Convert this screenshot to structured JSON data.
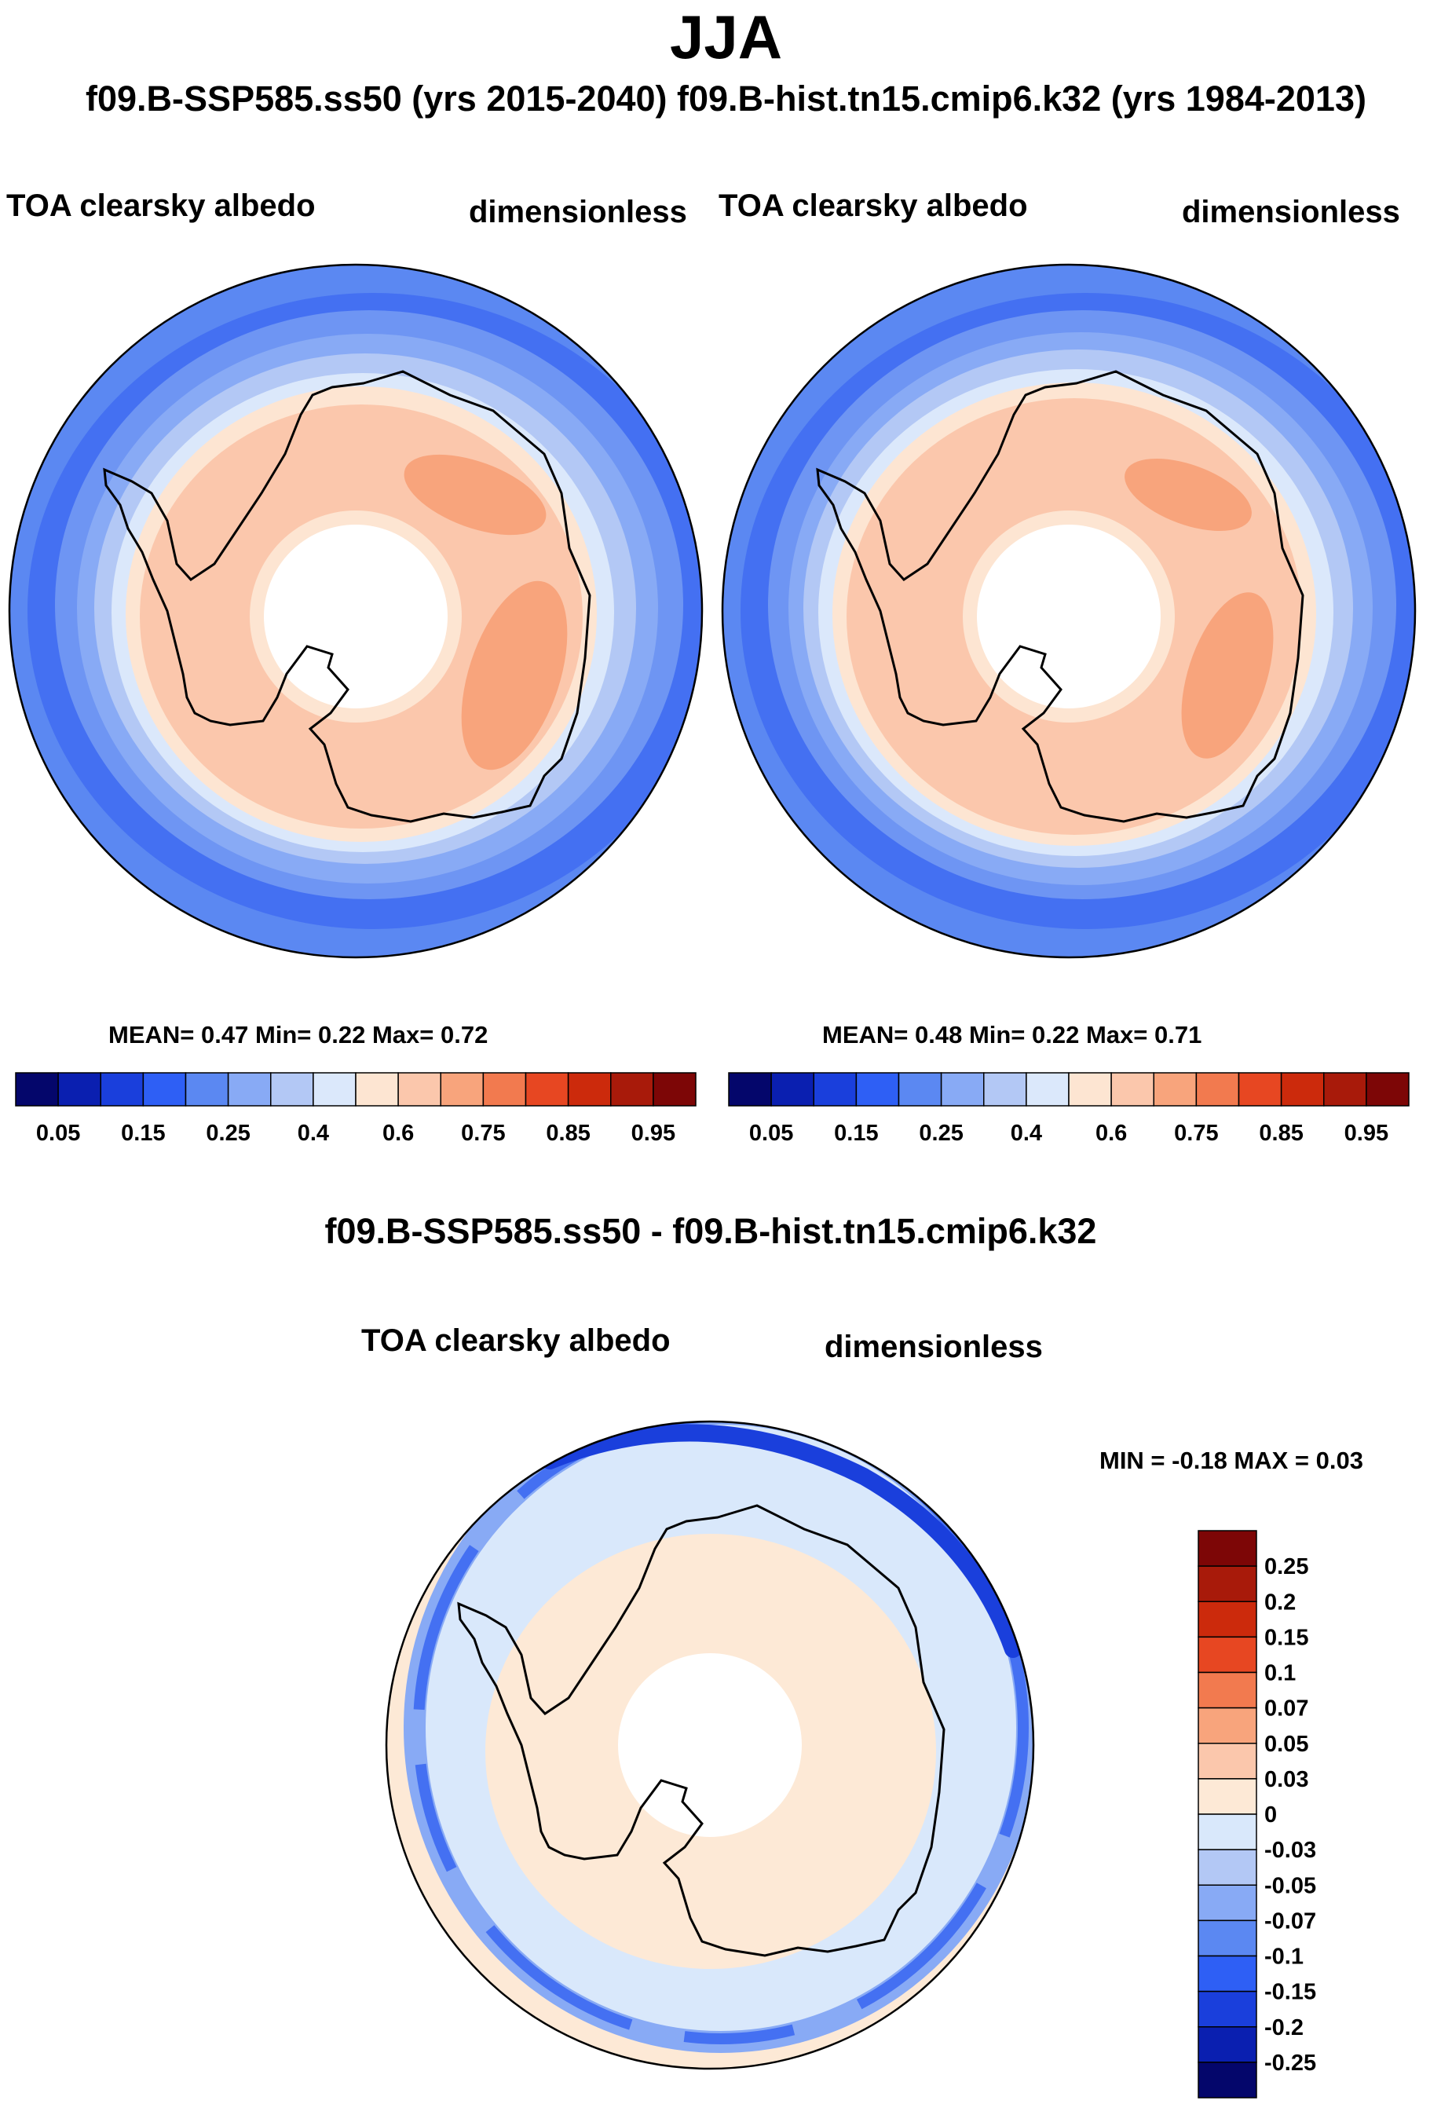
{
  "figure": {
    "season": "JJA",
    "subtitle": "f09.B-SSP585.ss50 (yrs 2015-2040)  f09.B-hist.tn15.cmip6.k32 (yrs 1984-2013)",
    "diff_title": "f09.B-SSP585.ss50 - f09.B-hist.tn15.cmip6.k32"
  },
  "chart_data": [
    {
      "type": "heatmap",
      "projection": "south-polar-stereographic",
      "case": "f09.B-SSP585.ss50 (yrs 2015-2040)",
      "title": "TOA clearsky albedo",
      "units": "dimensionless",
      "stats": {
        "mean": 0.47,
        "min": 0.22,
        "max": 0.72
      },
      "stats_text": "MEAN=   0.47  Min=   0.22  Max=   0.72",
      "colorbar_levels": [
        0.05,
        0.1,
        0.15,
        0.2,
        0.25,
        0.3,
        0.4,
        0.5,
        0.6,
        0.7,
        0.75,
        0.8,
        0.85,
        0.9,
        0.95
      ],
      "colorbar_tick_labels": [
        "0.05",
        "0.15",
        "0.25",
        "0.4",
        "0.6",
        "0.75",
        "0.85",
        "0.95"
      ],
      "colorbar_colors": [
        "#04066b",
        "#0a1fb0",
        "#1a3fdc",
        "#2e5ff5",
        "#5b88f2",
        "#88aaf5",
        "#b3c8f5",
        "#dbe8fb",
        "#fde5d2",
        "#fbc7ac",
        "#f8a47c",
        "#f27a4f",
        "#e74722",
        "#cc2a0c",
        "#a81a0a",
        "#7d0606"
      ]
    },
    {
      "type": "heatmap",
      "projection": "south-polar-stereographic",
      "case": "f09.B-hist.tn15.cmip6.k32 (yrs 1984-2013)",
      "title": "TOA clearsky albedo",
      "units": "dimensionless",
      "stats": {
        "mean": 0.48,
        "min": 0.22,
        "max": 0.71
      },
      "stats_text": "MEAN=   0.48  Min=   0.22  Max=   0.71",
      "colorbar_levels": [
        0.05,
        0.1,
        0.15,
        0.2,
        0.25,
        0.3,
        0.4,
        0.5,
        0.6,
        0.7,
        0.75,
        0.8,
        0.85,
        0.9,
        0.95
      ],
      "colorbar_tick_labels": [
        "0.05",
        "0.15",
        "0.25",
        "0.4",
        "0.6",
        "0.75",
        "0.85",
        "0.95"
      ],
      "colorbar_colors": [
        "#04066b",
        "#0a1fb0",
        "#1a3fdc",
        "#2e5ff5",
        "#5b88f2",
        "#88aaf5",
        "#b3c8f5",
        "#dbe8fb",
        "#fde5d2",
        "#fbc7ac",
        "#f8a47c",
        "#f27a4f",
        "#e74722",
        "#cc2a0c",
        "#a81a0a",
        "#7d0606"
      ]
    },
    {
      "type": "heatmap",
      "projection": "south-polar-stereographic",
      "case": "f09.B-SSP585.ss50 - f09.B-hist.tn15.cmip6.k32",
      "title": "TOA clearsky albedo",
      "units": "dimensionless",
      "stats": {
        "min": -0.18,
        "max": 0.03
      },
      "stats_text": "MIN =  -0.18 MAX =   0.03",
      "colorbar_levels": [
        0.25,
        0.2,
        0.15,
        0.1,
        0.07,
        0.05,
        0.03,
        0,
        -0.03,
        -0.05,
        -0.07,
        -0.1,
        -0.15,
        -0.2,
        -0.25
      ],
      "colorbar_tick_labels": [
        "0.25",
        "0.2",
        "0.15",
        "0.1",
        "0.07",
        "0.05",
        "0.03",
        "0",
        "-0.03",
        "-0.05",
        "-0.07",
        "-0.1",
        "-0.15",
        "-0.2",
        "-0.25"
      ],
      "colorbar_colors": [
        "#7d0606",
        "#a81a0a",
        "#cc2a0c",
        "#e74722",
        "#f27a4f",
        "#f8a47c",
        "#fbc7ac",
        "#fde9d6",
        "#d9e8fb",
        "#b3c8f5",
        "#88aaf5",
        "#5b88f2",
        "#2e5ff5",
        "#1a3fdc",
        "#0a1fb0",
        "#04066b"
      ]
    }
  ]
}
